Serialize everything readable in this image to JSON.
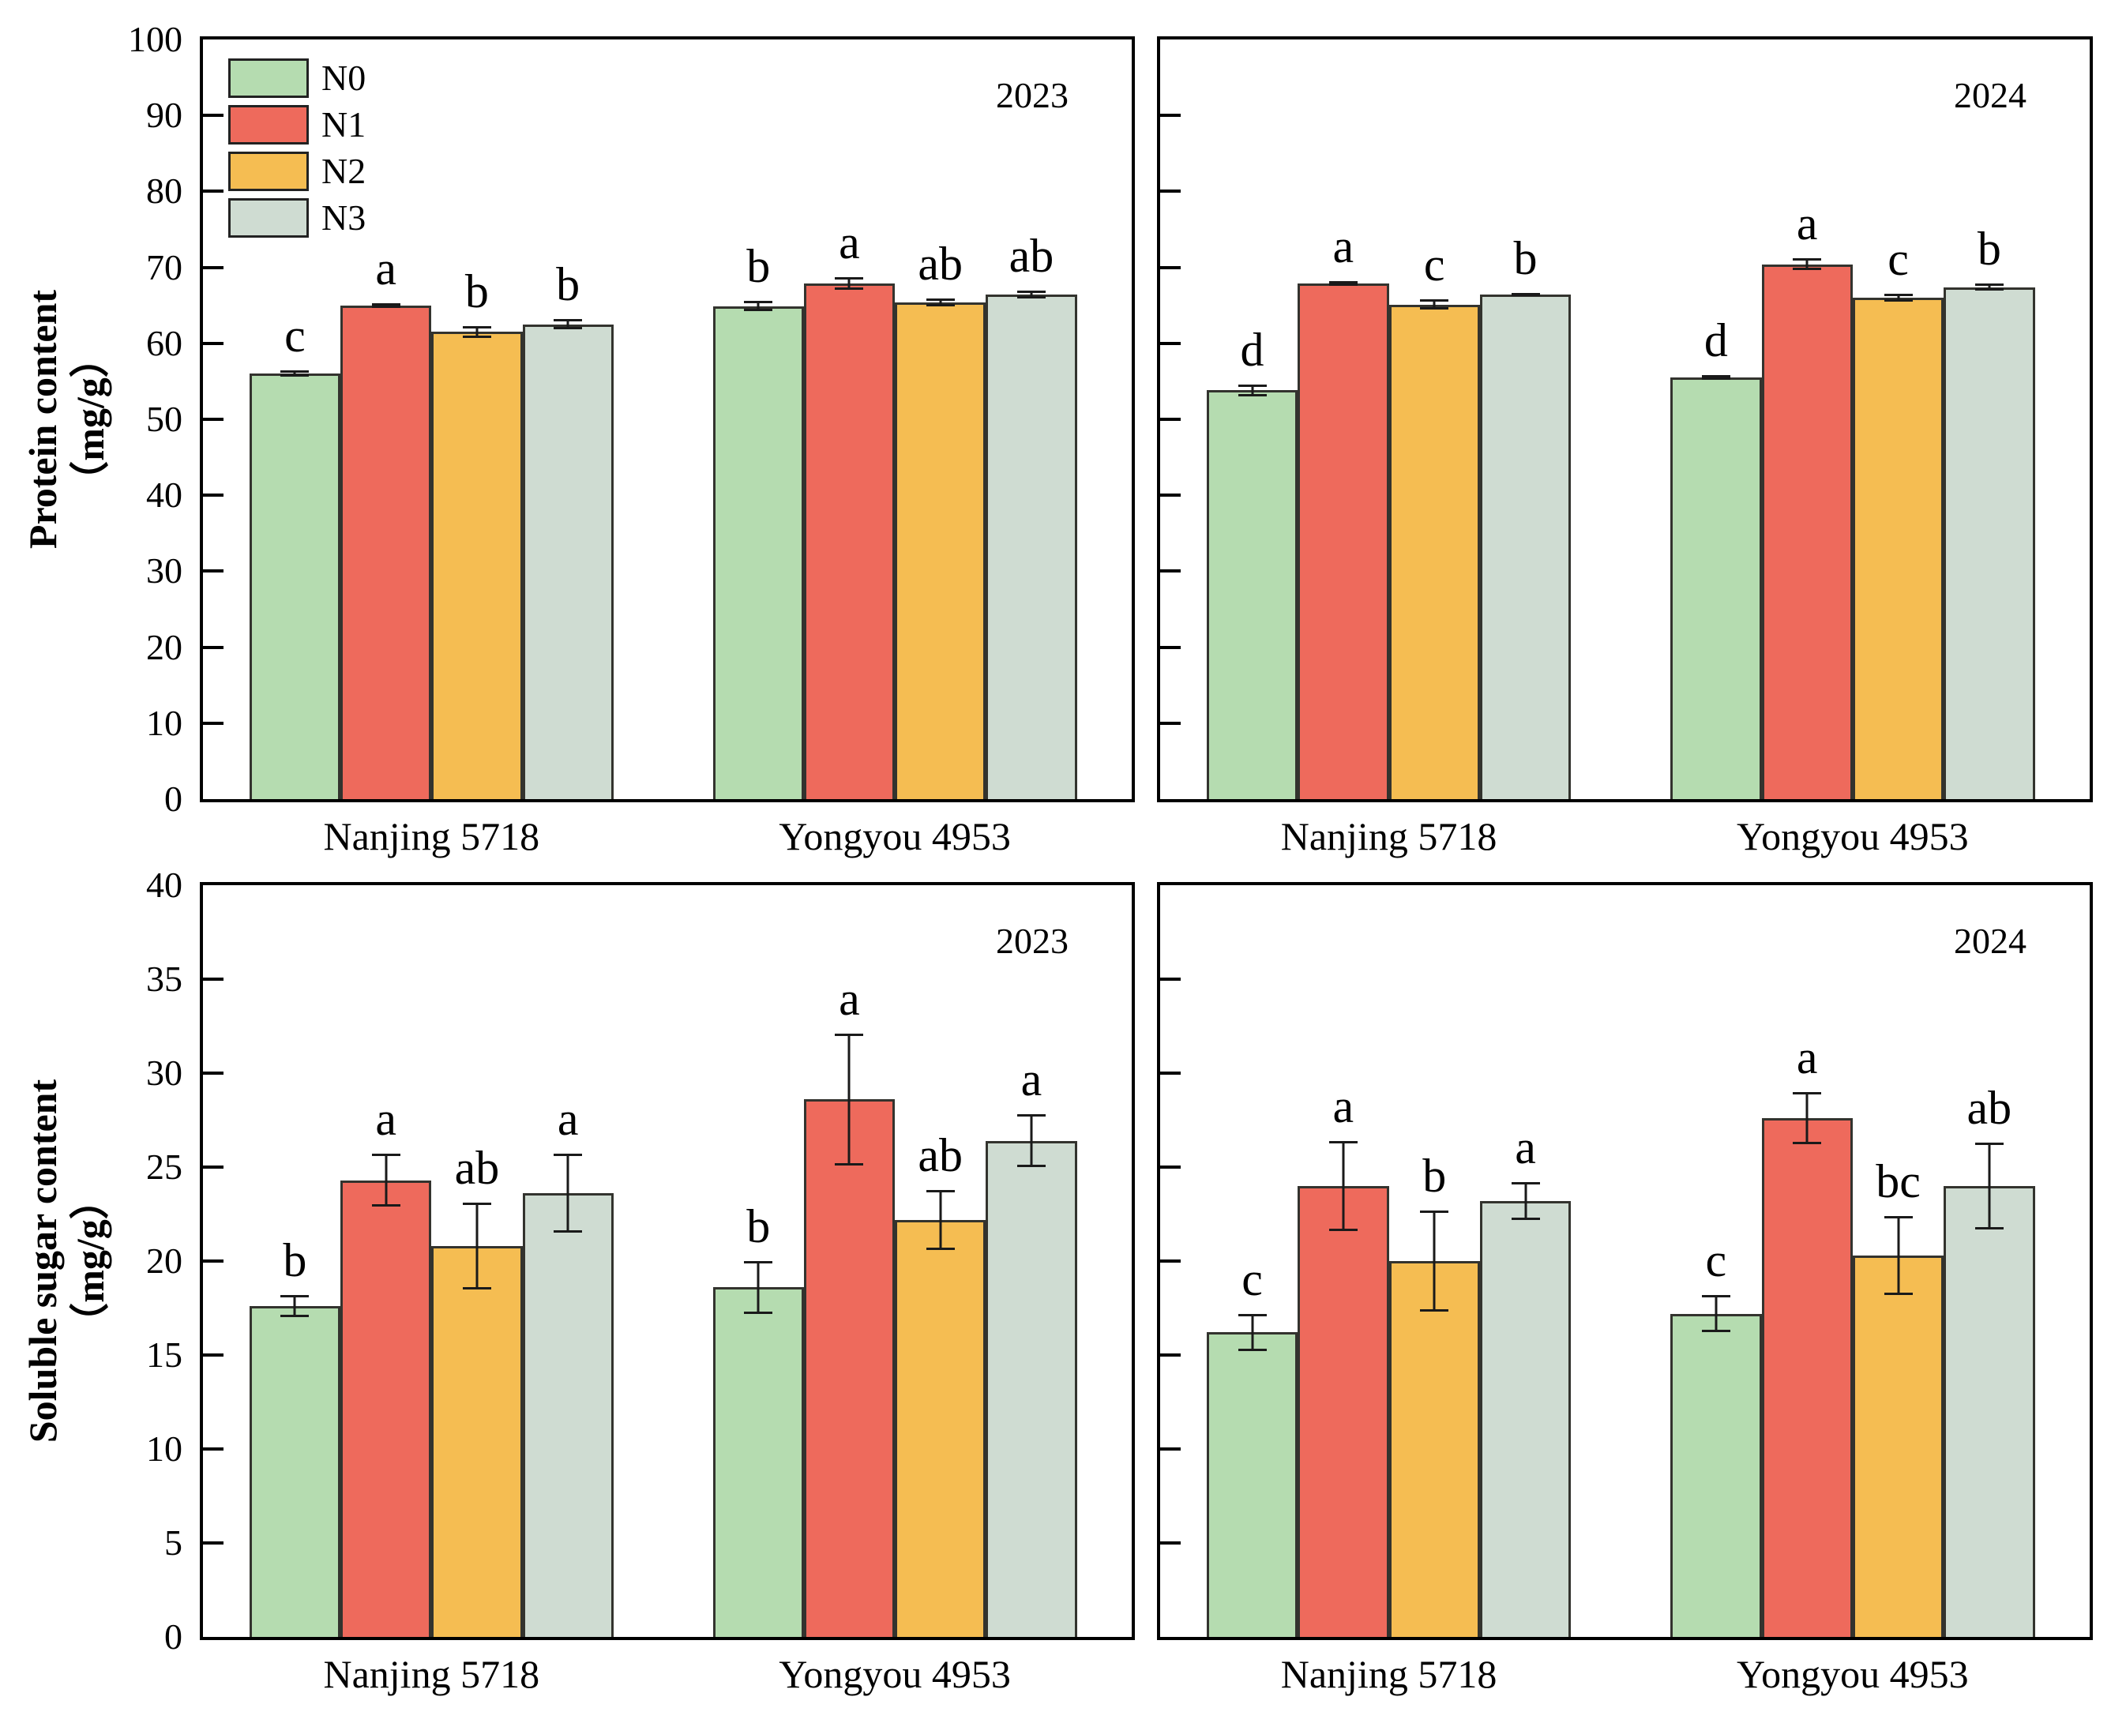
{
  "figure": {
    "background": "#ffffff",
    "axis_color": "#000000",
    "bar_border_color": "#33332e",
    "error_bar_color": "#1a1a1a",
    "legend": {
      "items": [
        {
          "label": "N0",
          "color": "#b5dcb0"
        },
        {
          "label": "N1",
          "color": "#ee6a5c"
        },
        {
          "label": "N2",
          "color": "#f5bd52"
        },
        {
          "label": "N3",
          "color": "#cfdcd2"
        }
      ]
    }
  },
  "chart_data": [
    {
      "id": "protein-2023",
      "type": "bar",
      "year_label": "2023",
      "ylabel": "Protein content（mg/g）",
      "ylabel_lines": [
        "Protein content",
        "（mg/g）"
      ],
      "ylim": [
        0,
        100
      ],
      "yticks": [
        0,
        10,
        20,
        30,
        40,
        50,
        60,
        70,
        80,
        90,
        100
      ],
      "grid": false,
      "legend_position": "top-left",
      "show_legend": true,
      "show_ytick_labels": true,
      "show_ylabel": true,
      "categories": [
        "Nanjing 5718",
        "Yongyou 4953"
      ],
      "series": [
        {
          "name": "N0",
          "color": "#b5dcb0",
          "values": [
            56.0,
            64.9
          ],
          "errors": [
            0.4,
            0.7
          ],
          "letters": [
            "c",
            "b"
          ]
        },
        {
          "name": "N1",
          "color": "#ee6a5c",
          "values": [
            65.0,
            67.9
          ],
          "errors": [
            0.3,
            0.8
          ],
          "letters": [
            "a",
            "a"
          ]
        },
        {
          "name": "N2",
          "color": "#f5bd52",
          "values": [
            61.5,
            65.4
          ],
          "errors": [
            0.8,
            0.5
          ],
          "letters": [
            "b",
            "ab"
          ]
        },
        {
          "name": "N3",
          "color": "#cfdcd2",
          "values": [
            62.5,
            66.4
          ],
          "errors": [
            0.7,
            0.5
          ],
          "letters": [
            "b",
            "ab"
          ]
        }
      ]
    },
    {
      "id": "protein-2024",
      "type": "bar",
      "year_label": "2024",
      "ylabel": "Protein content（mg/g）",
      "ylabel_lines": [
        "Protein content",
        "（mg/g）"
      ],
      "ylim": [
        0,
        100
      ],
      "yticks": [
        0,
        10,
        20,
        30,
        40,
        50,
        60,
        70,
        80,
        90,
        100
      ],
      "grid": false,
      "show_legend": false,
      "show_ytick_labels": false,
      "show_ylabel": false,
      "categories": [
        "Nanjing 5718",
        "Yongyou 4953"
      ],
      "series": [
        {
          "name": "N0",
          "color": "#b5dcb0",
          "values": [
            53.8,
            55.5
          ],
          "errors": [
            0.8,
            0.3
          ],
          "letters": [
            "d",
            "d"
          ]
        },
        {
          "name": "N1",
          "color": "#ee6a5c",
          "values": [
            67.9,
            70.4
          ],
          "errors": [
            0.3,
            0.8
          ],
          "letters": [
            "a",
            "a"
          ]
        },
        {
          "name": "N2",
          "color": "#f5bd52",
          "values": [
            65.1,
            66.0
          ],
          "errors": [
            0.7,
            0.5
          ],
          "letters": [
            "c",
            "c"
          ]
        },
        {
          "name": "N3",
          "color": "#cfdcd2",
          "values": [
            66.4,
            67.4
          ],
          "errors": [
            0.2,
            0.5
          ],
          "letters": [
            "b",
            "b"
          ]
        }
      ]
    },
    {
      "id": "soluble-sugar-2023",
      "type": "bar",
      "year_label": "2023",
      "ylabel": "Soluble sugar content（mg/g）",
      "ylabel_lines": [
        "Soluble sugar content",
        "（mg/g）"
      ],
      "ylim": [
        0,
        40
      ],
      "yticks": [
        0,
        5,
        10,
        15,
        20,
        25,
        30,
        35,
        40
      ],
      "grid": false,
      "show_legend": false,
      "show_ytick_labels": true,
      "show_ylabel": true,
      "categories": [
        "Nanjing 5718",
        "Yongyou 4953"
      ],
      "series": [
        {
          "name": "N0",
          "color": "#b5dcb0",
          "values": [
            17.6,
            18.6
          ],
          "errors": [
            0.6,
            1.4
          ],
          "letters": [
            "b",
            "b"
          ]
        },
        {
          "name": "N1",
          "color": "#ee6a5c",
          "values": [
            24.3,
            28.6
          ],
          "errors": [
            1.4,
            3.5
          ],
          "letters": [
            "a",
            "a"
          ]
        },
        {
          "name": "N2",
          "color": "#f5bd52",
          "values": [
            20.8,
            22.2
          ],
          "errors": [
            2.3,
            1.6
          ],
          "letters": [
            "ab",
            "ab"
          ]
        },
        {
          "name": "N3",
          "color": "#cfdcd2",
          "values": [
            23.6,
            26.4
          ],
          "errors": [
            2.1,
            1.4
          ],
          "letters": [
            "a",
            "a"
          ]
        }
      ]
    },
    {
      "id": "soluble-sugar-2024",
      "type": "bar",
      "year_label": "2024",
      "ylabel": "Soluble sugar content（mg/g）",
      "ylabel_lines": [
        "Soluble sugar content",
        "（mg/g）"
      ],
      "ylim": [
        0,
        40
      ],
      "yticks": [
        0,
        5,
        10,
        15,
        20,
        25,
        30,
        35,
        40
      ],
      "grid": false,
      "show_legend": false,
      "show_ytick_labels": false,
      "show_ylabel": false,
      "categories": [
        "Nanjing 5718",
        "Yongyou 4953"
      ],
      "series": [
        {
          "name": "N0",
          "color": "#b5dcb0",
          "values": [
            16.2,
            17.2
          ],
          "errors": [
            1.0,
            1.0
          ],
          "letters": [
            "c",
            "c"
          ]
        },
        {
          "name": "N1",
          "color": "#ee6a5c",
          "values": [
            24.0,
            27.6
          ],
          "errors": [
            2.4,
            1.4
          ],
          "letters": [
            "a",
            "a"
          ]
        },
        {
          "name": "N2",
          "color": "#f5bd52",
          "values": [
            20.0,
            20.3
          ],
          "errors": [
            2.7,
            2.1
          ],
          "letters": [
            "b",
            "bc"
          ]
        },
        {
          "name": "N3",
          "color": "#cfdcd2",
          "values": [
            23.2,
            24.0
          ],
          "errors": [
            1.0,
            2.3
          ],
          "letters": [
            "a",
            "ab"
          ]
        }
      ]
    }
  ]
}
